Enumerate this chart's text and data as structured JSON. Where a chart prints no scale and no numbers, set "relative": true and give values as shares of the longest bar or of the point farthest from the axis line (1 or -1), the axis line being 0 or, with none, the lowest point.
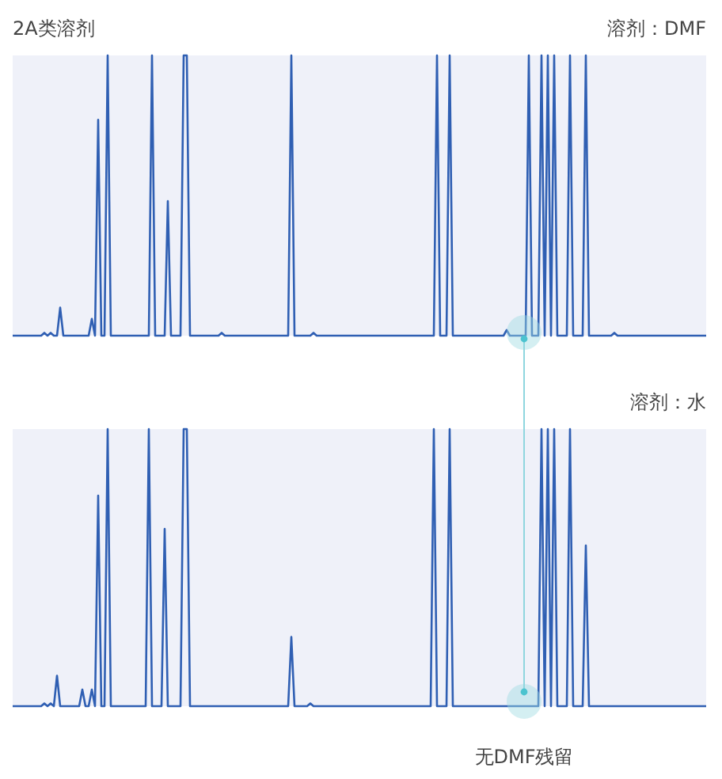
{
  "chart_data": [
    {
      "type": "line",
      "title": "溶剂：DMF",
      "annotations": [
        "2A类溶剂"
      ],
      "relative": true,
      "tick_labels": false,
      "categories": [
        null,
        null,
        null,
        null,
        null,
        null,
        null,
        null,
        null,
        null,
        null,
        null,
        null,
        null,
        null,
        null,
        null,
        null,
        null,
        null,
        null,
        null,
        null,
        null,
        null,
        null,
        null,
        null,
        null,
        null,
        null,
        null,
        null,
        null,
        null,
        null,
        null,
        null,
        null,
        null,
        null,
        null,
        null,
        null,
        null,
        null,
        null,
        null,
        null,
        null,
        null,
        null,
        null,
        null,
        null,
        null,
        null,
        null,
        null,
        null,
        null,
        null,
        null,
        null,
        null,
        null,
        null,
        null,
        null,
        null,
        null,
        null,
        null,
        null,
        null,
        null,
        null,
        null,
        null,
        null,
        null,
        null,
        null,
        null,
        null,
        null,
        null,
        null,
        null,
        null,
        null,
        null,
        null,
        null,
        null,
        null,
        null,
        null,
        null,
        null,
        null,
        null,
        null,
        null,
        null,
        null,
        null,
        null,
        null,
        null,
        null,
        null,
        null,
        null,
        null,
        null,
        null,
        null,
        null,
        null,
        null,
        null,
        null,
        null,
        null,
        null,
        null,
        null,
        null,
        null,
        null,
        null,
        null,
        null,
        null,
        null,
        null,
        null,
        null,
        null,
        null,
        null,
        null,
        null,
        null,
        null,
        null,
        null,
        null,
        null,
        null,
        null,
        null,
        null,
        null,
        null,
        null,
        null,
        null,
        null,
        null,
        null,
        null,
        null,
        null,
        null,
        null,
        null,
        null,
        null,
        null,
        null,
        null,
        null,
        null,
        null,
        null,
        null,
        null,
        null,
        null,
        null,
        null,
        null,
        null,
        null,
        null,
        null,
        null,
        null,
        null,
        null,
        null,
        null,
        null,
        null,
        null,
        null,
        null,
        null,
        null,
        null,
        null,
        null,
        null,
        null,
        null,
        null,
        null,
        null,
        null,
        null,
        null,
        null,
        null,
        null,
        null,
        null,
        null,
        null
      ],
      "series": [
        {
          "color": "#2f5fb3",
          "values": [
            0,
            0,
            0,
            0,
            0,
            0,
            0,
            0,
            0,
            0,
            0.01,
            0,
            0.01,
            0,
            0,
            0.1,
            0,
            0,
            0,
            0,
            0,
            0,
            0,
            0,
            0,
            0.06,
            0,
            0.77,
            0,
            0,
            1,
            0,
            0,
            0,
            0,
            0,
            0,
            0,
            0,
            0,
            0,
            0,
            0,
            0,
            1,
            0,
            0,
            0,
            0,
            0.48,
            0,
            0,
            0,
            0,
            1,
            1,
            0,
            0,
            0,
            0,
            0,
            0,
            0,
            0,
            0,
            0,
            0.01,
            0,
            0,
            0,
            0,
            0,
            0,
            0,
            0,
            0,
            0,
            0,
            0,
            0,
            0,
            0,
            0,
            0,
            0,
            0,
            0,
            0,
            1,
            0,
            0,
            0,
            0,
            0,
            0,
            0.01,
            0,
            0,
            0,
            0,
            0,
            0,
            0,
            0,
            0,
            0,
            0,
            0,
            0,
            0,
            0,
            0,
            0,
            0,
            0,
            0,
            0,
            0,
            0,
            0,
            0,
            0,
            0,
            0,
            0,
            0,
            0,
            0,
            0,
            0,
            0,
            0,
            0,
            0,
            1,
            0,
            0,
            0,
            1,
            0,
            0,
            0,
            0,
            0,
            0,
            0,
            0,
            0,
            0,
            0,
            0,
            0,
            0,
            0,
            0,
            0,
            0.02,
            0,
            0,
            0,
            0,
            0,
            0,
            1,
            0,
            0,
            0,
            1,
            0,
            1,
            0,
            1,
            0,
            0,
            0,
            0,
            1,
            0,
            0,
            0,
            0,
            1,
            0,
            0,
            0,
            0,
            0,
            0,
            0,
            0,
            0.01,
            0,
            0,
            0,
            0,
            0,
            0,
            0,
            0,
            0,
            0,
            0,
            0,
            0,
            0,
            0,
            0,
            0,
            0,
            0,
            0,
            0,
            0,
            0,
            0,
            0,
            0,
            0,
            0,
            0
          ]
        }
      ]
    },
    {
      "type": "line",
      "title": "溶剂：水",
      "annotations": [
        "无DMF残留"
      ],
      "relative": true,
      "tick_labels": false,
      "categories": [
        null,
        null,
        null,
        null,
        null,
        null,
        null,
        null,
        null,
        null,
        null,
        null,
        null,
        null,
        null,
        null,
        null,
        null,
        null,
        null,
        null,
        null,
        null,
        null,
        null,
        null,
        null,
        null,
        null,
        null,
        null,
        null,
        null,
        null,
        null,
        null,
        null,
        null,
        null,
        null,
        null,
        null,
        null,
        null,
        null,
        null,
        null,
        null,
        null,
        null,
        null,
        null,
        null,
        null,
        null,
        null,
        null,
        null,
        null,
        null,
        null,
        null,
        null,
        null,
        null,
        null,
        null,
        null,
        null,
        null,
        null,
        null,
        null,
        null,
        null,
        null,
        null,
        null,
        null,
        null,
        null,
        null,
        null,
        null,
        null,
        null,
        null,
        null,
        null,
        null,
        null,
        null,
        null,
        null,
        null,
        null,
        null,
        null,
        null,
        null,
        null,
        null,
        null,
        null,
        null,
        null,
        null,
        null,
        null,
        null,
        null,
        null,
        null,
        null,
        null,
        null,
        null,
        null,
        null,
        null,
        null,
        null,
        null,
        null,
        null,
        null,
        null,
        null,
        null,
        null,
        null,
        null,
        null,
        null,
        null,
        null,
        null,
        null,
        null,
        null,
        null,
        null,
        null,
        null,
        null,
        null,
        null,
        null,
        null,
        null,
        null,
        null,
        null,
        null,
        null,
        null,
        null,
        null,
        null,
        null,
        null,
        null,
        null,
        null,
        null,
        null,
        null,
        null,
        null,
        null,
        null,
        null,
        null,
        null,
        null,
        null,
        null,
        null,
        null,
        null,
        null,
        null,
        null,
        null,
        null,
        null,
        null,
        null,
        null,
        null,
        null,
        null,
        null,
        null,
        null,
        null,
        null,
        null,
        null,
        null,
        null,
        null,
        null,
        null,
        null,
        null,
        null,
        null,
        null,
        null,
        null,
        null,
        null,
        null,
        null,
        null,
        null,
        null,
        null,
        null
      ],
      "series": [
        {
          "color": "#2f5fb3",
          "values": [
            0,
            0,
            0,
            0,
            0,
            0,
            0,
            0,
            0,
            0,
            0.01,
            0,
            0.01,
            0,
            0.11,
            0,
            0,
            0,
            0,
            0,
            0,
            0,
            0.06,
            0,
            0,
            0.06,
            0,
            0.76,
            0,
            0,
            1,
            0,
            0,
            0,
            0,
            0,
            0,
            0,
            0,
            0,
            0,
            0,
            0,
            1,
            0,
            0,
            0,
            0,
            0.64,
            0,
            0,
            0,
            0,
            0,
            1,
            1,
            0,
            0,
            0,
            0,
            0,
            0,
            0,
            0,
            0,
            0,
            0,
            0,
            0,
            0,
            0,
            0,
            0,
            0,
            0,
            0,
            0,
            0,
            0,
            0,
            0,
            0,
            0,
            0,
            0,
            0,
            0,
            0,
            0.25,
            0,
            0,
            0,
            0,
            0,
            0.01,
            0,
            0,
            0,
            0,
            0,
            0,
            0,
            0,
            0,
            0,
            0,
            0,
            0,
            0,
            0,
            0,
            0,
            0,
            0,
            0,
            0,
            0,
            0,
            0,
            0,
            0,
            0,
            0,
            0,
            0,
            0,
            0,
            0,
            0,
            0,
            0,
            0,
            0,
            1,
            0,
            0,
            0,
            0,
            1,
            0,
            0,
            0,
            0,
            0,
            0,
            0,
            0,
            0,
            0,
            0,
            0,
            0,
            0,
            0,
            0,
            0,
            0,
            0,
            0,
            0,
            0,
            0,
            0,
            0,
            0,
            0,
            0,
            1,
            0,
            1,
            0,
            1,
            0,
            0,
            0,
            0,
            1,
            0,
            0,
            0,
            0,
            0.58,
            0,
            0,
            0,
            0,
            0,
            0,
            0,
            0,
            0,
            0,
            0,
            0,
            0,
            0,
            0,
            0,
            0,
            0,
            0,
            0,
            0,
            0,
            0,
            0,
            0,
            0,
            0,
            0,
            0,
            0,
            0,
            0,
            0,
            0,
            0,
            0,
            0,
            0
          ]
        }
      ]
    }
  ]
}
